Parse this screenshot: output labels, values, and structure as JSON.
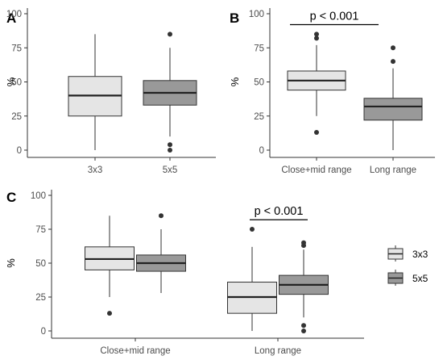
{
  "chart_data": [
    {
      "type": "boxplot",
      "panel_label": "A",
      "ylabel": "%",
      "ylim": [
        0,
        100
      ],
      "yticks": [
        0,
        25,
        50,
        75,
        100
      ],
      "categories": [
        "3x3",
        "5x5"
      ],
      "boxes": [
        {
          "category": "3x3",
          "group": "3x3",
          "fill": "#e5e5e5",
          "min": 0,
          "q1": 25,
          "median": 40,
          "q3": 54,
          "max": 85,
          "outliers": []
        },
        {
          "category": "5x5",
          "group": "5x5",
          "fill": "#999999",
          "min": 10,
          "q1": 33,
          "median": 42,
          "q3": 51,
          "max": 75,
          "outliers": [
            85,
            4,
            0
          ]
        }
      ],
      "annotation": null
    },
    {
      "type": "boxplot",
      "panel_label": "B",
      "ylabel": "%",
      "ylim": [
        0,
        100
      ],
      "yticks": [
        0,
        25,
        50,
        75,
        100
      ],
      "categories": [
        "Close+mid range",
        "Long range"
      ],
      "boxes": [
        {
          "category": "Close+mid range",
          "fill": "#e5e5e5",
          "min": 25,
          "q1": 44,
          "median": 51,
          "q3": 58,
          "max": 77,
          "outliers": [
            85,
            82,
            13
          ]
        },
        {
          "category": "Long range",
          "fill": "#999999",
          "min": 0,
          "q1": 22,
          "median": 32,
          "q3": 38,
          "max": 60,
          "outliers": [
            75,
            65
          ]
        }
      ],
      "annotation": {
        "text": "p < 0.001",
        "y": 92
      }
    },
    {
      "type": "boxplot",
      "panel_label": "C",
      "ylabel": "%",
      "ylim": [
        0,
        100
      ],
      "yticks": [
        0,
        25,
        50,
        75,
        100
      ],
      "categories": [
        "Close+mid range",
        "Long range"
      ],
      "boxes": [
        {
          "category": "Close+mid range",
          "group": "3x3",
          "fill": "#e5e5e5",
          "min": 25,
          "q1": 45,
          "median": 53,
          "q3": 62,
          "max": 85,
          "outliers": [
            13
          ]
        },
        {
          "category": "Close+mid range",
          "group": "5x5",
          "fill": "#999999",
          "min": 28,
          "q1": 44,
          "median": 50,
          "q3": 56,
          "max": 75,
          "outliers": [
            85
          ]
        },
        {
          "category": "Long range",
          "group": "3x3",
          "fill": "#e5e5e5",
          "min": 0,
          "q1": 13,
          "median": 25,
          "q3": 36,
          "max": 62,
          "outliers": [
            75
          ]
        },
        {
          "category": "Long range",
          "group": "5x5",
          "fill": "#999999",
          "min": 10,
          "q1": 27,
          "median": 34,
          "q3": 41,
          "max": 60,
          "outliers": [
            65,
            63,
            4,
            0
          ]
        }
      ],
      "annotation": {
        "text": "p < 0.001",
        "y": 82
      }
    }
  ],
  "legend": {
    "position": "right",
    "items": [
      {
        "label": "3x3",
        "fill": "#e5e5e5"
      },
      {
        "label": "5x5",
        "fill": "#999999"
      }
    ]
  }
}
